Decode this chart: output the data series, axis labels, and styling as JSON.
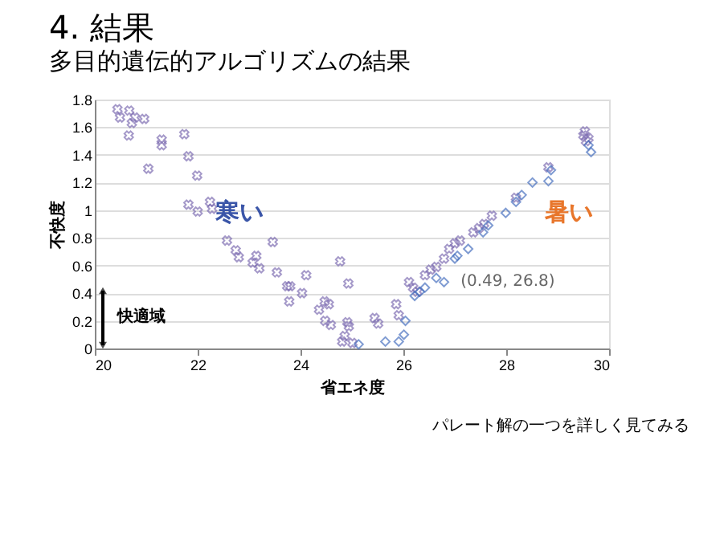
{
  "chart_data": {
    "type": "scatter",
    "title": "4. 結果",
    "subtitle": "多目的遺伝的アルゴリズムの結果",
    "xlabel": "省エネ度",
    "ylabel": "不快度",
    "xlim": [
      20,
      30
    ],
    "xticks": [
      20,
      22,
      24,
      26,
      28,
      30
    ],
    "ylim": [
      0,
      1.8
    ],
    "yticks": [
      0,
      0.2,
      0.4,
      0.6,
      0.8,
      1,
      1.2,
      1.4,
      1.6,
      1.8
    ],
    "grid": "y",
    "series": [
      {
        "color": "#7f6fb3",
        "marker": "cross",
        "x": [
          20.44,
          20.49,
          20.67,
          20.72,
          20.78,
          20.66,
          20.96,
          21.04,
          21.3,
          21.3,
          21.74,
          21.82,
          21.82,
          21.99,
          22.0,
          22.24,
          22.28,
          22.57,
          22.74,
          22.8,
          23.07,
          23.14,
          23.2,
          23.46,
          23.54,
          23.74,
          23.8,
          23.78,
          24.03,
          24.11,
          24.36,
          24.47,
          24.55,
          24.48,
          24.59,
          24.77,
          24.93,
          24.91,
          24.94,
          24.81,
          24.86,
          25.01,
          25.44,
          25.51,
          25.86,
          25.91,
          26.11,
          26.19,
          26.27,
          26.42,
          26.53,
          26.64,
          26.79,
          26.89,
          27.0,
          27.1,
          27.36,
          27.47,
          27.57,
          27.72,
          28.19,
          28.82,
          29.5,
          29.55,
          29.6,
          29.53
        ],
        "values": [
          1.73,
          1.67,
          1.72,
          1.63,
          1.67,
          1.54,
          1.66,
          1.3,
          1.51,
          1.47,
          1.55,
          1.39,
          1.04,
          1.25,
          0.99,
          1.06,
          1.01,
          0.78,
          0.71,
          0.66,
          0.62,
          0.67,
          0.58,
          0.77,
          0.55,
          0.45,
          0.45,
          0.34,
          0.4,
          0.53,
          0.28,
          0.34,
          0.32,
          0.2,
          0.17,
          0.63,
          0.47,
          0.19,
          0.16,
          0.05,
          0.09,
          0.04,
          0.22,
          0.18,
          0.32,
          0.24,
          0.48,
          0.44,
          0.41,
          0.53,
          0.57,
          0.59,
          0.65,
          0.72,
          0.76,
          0.78,
          0.84,
          0.87,
          0.9,
          0.96,
          1.09,
          1.31,
          1.54,
          1.5,
          1.52,
          1.57
        ]
      },
      {
        "color": "#4a72c0",
        "marker": "diamond",
        "x": [
          25.13,
          25.65,
          25.91,
          26.01,
          26.04,
          26.22,
          26.32,
          26.42,
          26.64,
          26.79,
          27.0,
          27.05,
          27.26,
          27.55,
          27.65,
          27.99,
          28.19,
          28.3,
          28.51,
          28.82,
          28.87,
          29.6,
          29.65
        ],
        "values": [
          0.03,
          0.05,
          0.05,
          0.1,
          0.2,
          0.38,
          0.41,
          0.44,
          0.51,
          0.48,
          0.65,
          0.67,
          0.72,
          0.84,
          0.89,
          0.98,
          1.06,
          1.11,
          1.2,
          1.21,
          1.29,
          1.47,
          1.42
        ]
      }
    ],
    "annotations": [
      "寒い",
      "暑い",
      {
        "text": "(0.49, 26.8)",
        "x": 26.8,
        "y": 0.49
      },
      "パレート解の一つを詳しく見てみる",
      "快適域"
    ]
  }
}
